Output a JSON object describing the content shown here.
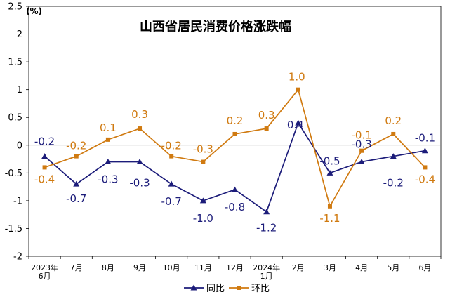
{
  "chart_data": {
    "type": "line",
    "title": "山西省居民消费价格涨跌幅",
    "unit": "(%)",
    "categories": [
      [
        "2023年",
        "6月"
      ],
      [
        "7月"
      ],
      [
        "8月"
      ],
      [
        "9月"
      ],
      [
        "10月"
      ],
      [
        "11月"
      ],
      [
        "12月"
      ],
      [
        "2024年",
        "1月"
      ],
      [
        "2月"
      ],
      [
        "3月"
      ],
      [
        "4月"
      ],
      [
        "5月"
      ],
      [
        "6月"
      ]
    ],
    "ylim": [
      -2,
      2.5
    ],
    "yticks": [
      "2.5",
      "2",
      "1.5",
      "1",
      "0.5",
      "0",
      "-0.5",
      "-1",
      "-1.5",
      "-2"
    ],
    "legend_position": "bottom",
    "series": [
      {
        "name": "同比",
        "color": "#1c1c7a",
        "marker": "triangle",
        "values": [
          -0.2,
          -0.7,
          -0.3,
          -0.3,
          -0.7,
          -1.0,
          -0.8,
          -1.2,
          0.4,
          -0.5,
          -0.3,
          -0.2,
          -0.1
        ],
        "labels": [
          "-0.2",
          "-0.7",
          "-0.3",
          "-0.3",
          "-0.7",
          "-1.0",
          "-0.8",
          "-1.2",
          "0.4",
          "-0.5",
          "-0.3",
          "-0.2",
          "-0.1"
        ]
      },
      {
        "name": "环比",
        "color": "#d07a10",
        "marker": "square",
        "values": [
          -0.4,
          -0.2,
          0.1,
          0.3,
          -0.2,
          -0.3,
          0.2,
          0.3,
          1.0,
          -1.1,
          -0.1,
          0.2,
          -0.4
        ],
        "labels": [
          "-0.4",
          "-0.2",
          "0.1",
          "0.3",
          "-0.2",
          "-0.3",
          "0.2",
          "0.3",
          "1.0",
          "-1.1",
          "-0.1",
          "0.2",
          "-0.4"
        ]
      }
    ]
  }
}
